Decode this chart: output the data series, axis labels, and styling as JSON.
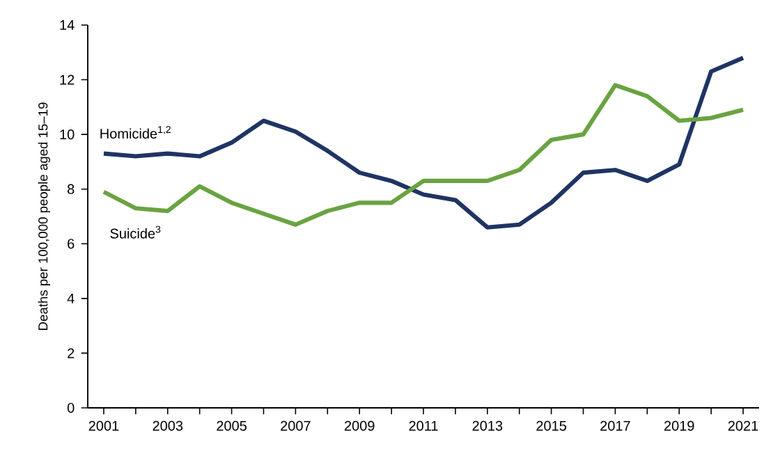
{
  "chart_data": {
    "type": "line",
    "ylabel": "Deaths per 100,000 people aged 15–19",
    "x": [
      2001,
      2002,
      2003,
      2004,
      2005,
      2006,
      2007,
      2008,
      2009,
      2010,
      2011,
      2012,
      2013,
      2014,
      2015,
      2016,
      2017,
      2018,
      2019,
      2020,
      2021
    ],
    "series": [
      {
        "name": "Homicide$^{1,2}$",
        "color": "#1f3464",
        "values": [
          9.3,
          9.2,
          9.3,
          9.2,
          9.7,
          10.5,
          10.1,
          9.4,
          8.6,
          8.3,
          7.8,
          7.6,
          6.6,
          6.7,
          7.5,
          8.6,
          8.7,
          8.3,
          8.9,
          12.3,
          12.8
        ]
      },
      {
        "name": "Suicide$^{3}$",
        "color": "#6aa342",
        "values": [
          7.9,
          7.3,
          7.2,
          8.1,
          7.5,
          7.1,
          6.7,
          7.2,
          7.5,
          7.5,
          8.3,
          8.3,
          8.3,
          8.7,
          9.8,
          10.0,
          11.8,
          11.4,
          10.5,
          10.6,
          10.9
        ]
      }
    ],
    "xlim": [
      2000.5,
      2021.5
    ],
    "xticks": [
      2001,
      {
        "value": 2002,
        "label": null
      },
      2003,
      {
        "value": 2004,
        "label": null
      },
      2005,
      {
        "value": 2006,
        "label": null
      },
      2007,
      {
        "value": 2008,
        "label": null
      },
      2009,
      {
        "value": 2010,
        "label": null
      },
      2011,
      {
        "value": 2012,
        "label": null
      },
      2013,
      {
        "value": 2014,
        "label": null
      },
      2015,
      {
        "value": 2016,
        "label": null
      },
      2017,
      {
        "value": 2018,
        "label": null
      },
      2019,
      {
        "value": 2020,
        "label": null
      },
      2021
    ],
    "ylim": [
      0,
      14
    ],
    "yticks": [
      0,
      2,
      4,
      6,
      8,
      10,
      12,
      14
    ],
    "grid": false,
    "legend": false,
    "marker": "none",
    "line_style": "solid"
  }
}
